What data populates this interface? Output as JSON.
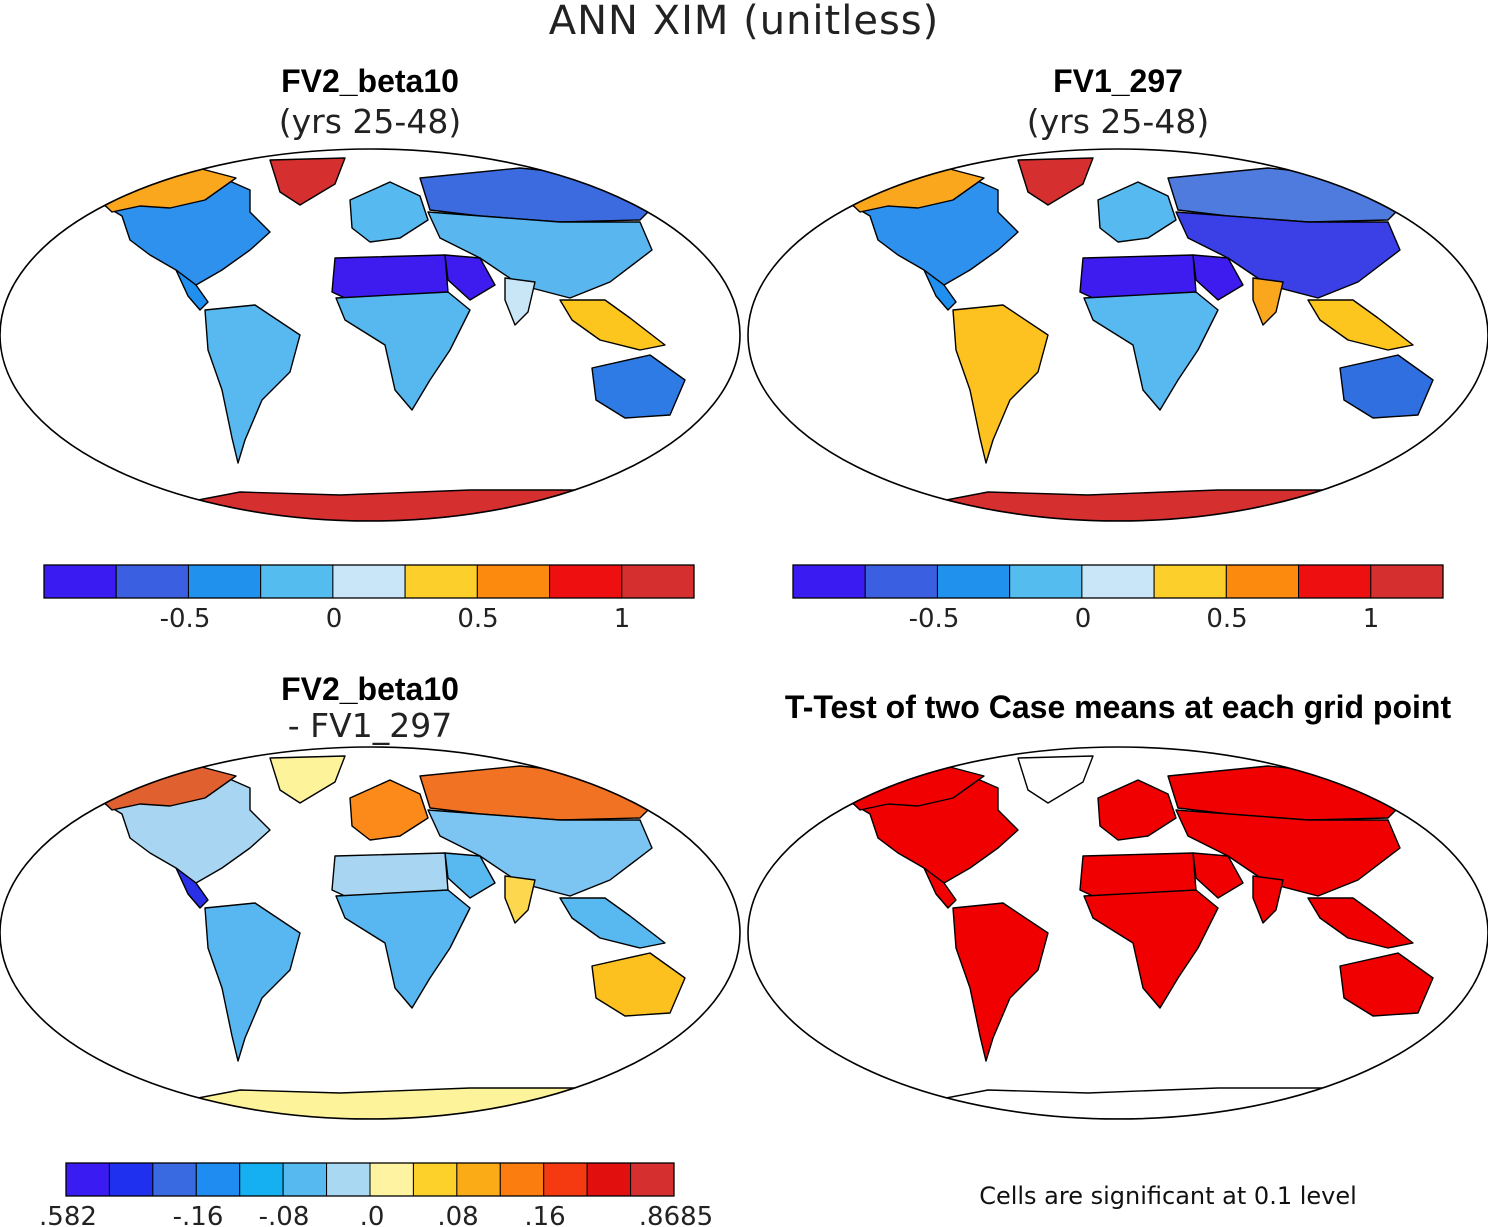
{
  "figure": {
    "title": "ANN XIM (unitless)"
  },
  "panels": [
    {
      "title": "FV2_beta10",
      "subtitle": "(yrs 25-48)",
      "regions": {
        "greenland": "#d62f2f",
        "antarctica": "#d62f2f",
        "north_america": "#2f91ee",
        "canada_arctic": "#fba71e",
        "central_america": "#1f8ff0",
        "south_america": "#58b9f0",
        "europe": "#56baf0",
        "siberia": "#3c6be0",
        "asia": "#5ab6ee",
        "middle_east": "#3e1cf0",
        "africa": "#56b8ef",
        "sahara": "#3e1cf0",
        "australia": "#2f7be6",
        "se_asia": "#fdc61f",
        "india": "#c8e6f6"
      }
    },
    {
      "title": "FV1_297",
      "subtitle": "(yrs 25-48)",
      "regions": {
        "greenland": "#d62f2f",
        "antarctica": "#d62f2f",
        "north_america": "#2f91ee",
        "canada_arctic": "#fba71e",
        "central_america": "#1f8ff0",
        "south_america": "#fdc21f",
        "europe": "#56baf0",
        "siberia": "#4f7bdf",
        "asia": "#3a3fe6",
        "middle_east": "#3e1cf0",
        "africa": "#58b9f0",
        "sahara": "#3e1cf0",
        "australia": "#2f6fe0",
        "se_asia": "#fdc61f",
        "india": "#fba71e"
      }
    },
    {
      "title": "FV2_beta10",
      "subtitle": "- FV1_297",
      "regions": {
        "greenland": "#fdf39a",
        "antarctica": "#fdf39a",
        "north_america": "#a8d6f2",
        "canada_arctic": "#e06030",
        "central_america": "#2a2fe8",
        "south_america": "#58b6f0",
        "europe": "#fb8a1a",
        "siberia": "#f27224",
        "asia": "#7cc4f2",
        "middle_east": "#58b9f0",
        "africa": "#58b6f0",
        "sahara": "#a8d6f2",
        "australia": "#fdc11f",
        "se_asia": "#58b9f0",
        "india": "#fdd84e"
      }
    },
    {
      "title": "T-Test of two Case means at each grid point",
      "subtitle": "",
      "regions": {
        "greenland": "#ffffff",
        "antarctica": "#ffffff",
        "north_america": "#f00000",
        "canada_arctic": "#f00000",
        "central_america": "#f00000",
        "south_america": "#f00000",
        "europe": "#f00000",
        "siberia": "#f00000",
        "asia": "#f00000",
        "middle_east": "#f00000",
        "africa": "#f00000",
        "sahara": "#f00000",
        "australia": "#f00000",
        "se_asia": "#f00000",
        "india": "#f00000"
      }
    }
  ],
  "colorbar_top": {
    "colors": [
      "#3a1cf2",
      "#3a5fe0",
      "#2191ee",
      "#55bcef",
      "#c8e6f7",
      "#fdcf2a",
      "#fb8a0e",
      "#ee1010",
      "#d62f2f"
    ],
    "ticks": [
      "-0.5",
      "0",
      "0.5",
      "1"
    ]
  },
  "colorbar_diff": {
    "colors": [
      "#3a1cf2",
      "#1f30ee",
      "#3a6ae2",
      "#1e8cf0",
      "#14b0f2",
      "#56baf0",
      "#a9d9f2",
      "#fdf3a0",
      "#fdd02a",
      "#fbab16",
      "#fb7d10",
      "#f53a12",
      "#e20f0f",
      "#d62f2f"
    ],
    "ticks": [
      ".582",
      "-.16",
      "-.08",
      ".0",
      ".08",
      ".16",
      ".8685"
    ]
  },
  "significance_note": "Cells are significant at 0.1 level"
}
